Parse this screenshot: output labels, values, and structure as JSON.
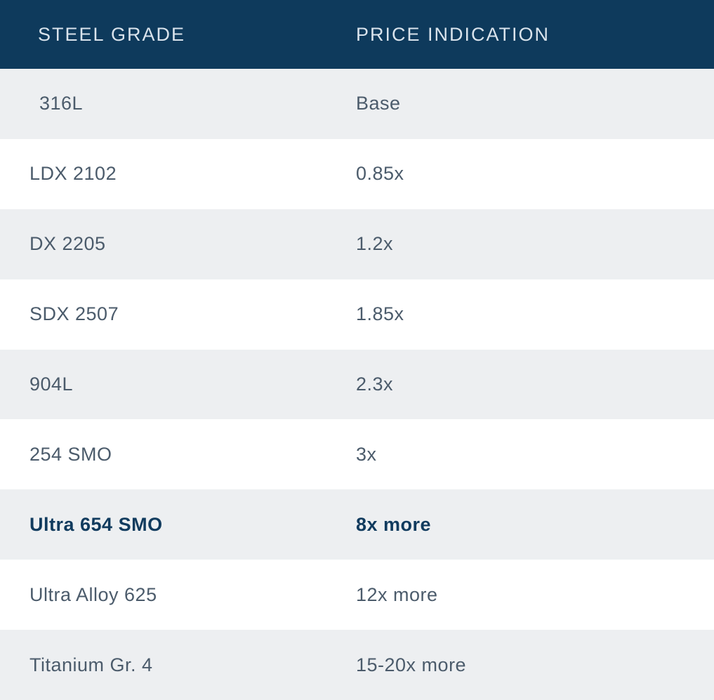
{
  "chart_data": {
    "type": "table",
    "columns": [
      "STEEL GRADE",
      "PRICE INDICATION"
    ],
    "rows": [
      {
        "grade": "316L",
        "price": "Base",
        "bold": false
      },
      {
        "grade": "LDX 2102",
        "price": "0.85x",
        "bold": false
      },
      {
        "grade": "DX 2205",
        "price": "1.2x",
        "bold": false
      },
      {
        "grade": "SDX 2507",
        "price": "1.85x",
        "bold": false
      },
      {
        "grade": "904L",
        "price": "2.3x",
        "bold": false
      },
      {
        "grade": "254 SMO",
        "price": "3x",
        "bold": false
      },
      {
        "grade": "Ultra 654 SMO",
        "price": "8x more",
        "bold": true
      },
      {
        "grade": "Ultra Alloy 625",
        "price": "12x more",
        "bold": false
      },
      {
        "grade": "Titanium Gr. 4",
        "price": "15-20x more",
        "bold": false
      }
    ]
  },
  "table": {
    "header": {
      "steel_grade_label": "STEEL GRADE",
      "price_indication_label": "PRICE INDICATION"
    },
    "colors": {
      "header_background": "#0e3a5c",
      "header_text": "#d9e3ec",
      "row_alt_background": "#edeff1",
      "row_background": "#ffffff",
      "body_text": "#4b5b6b",
      "emphasis_text": "#113b5e"
    }
  }
}
